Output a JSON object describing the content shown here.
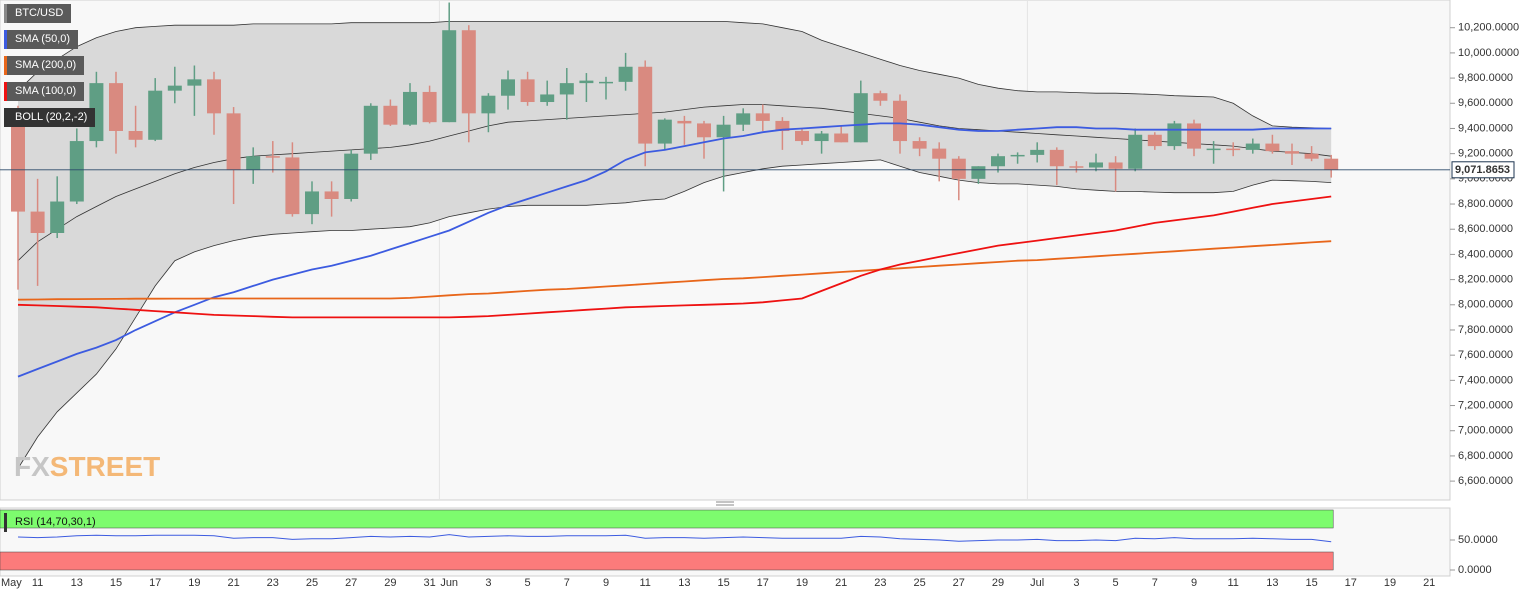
{
  "chart_data": [
    {
      "type": "candlestick",
      "symbol": "BTC/USD",
      "categories": [
        "May",
        "11",
        null,
        "13",
        null,
        "15",
        null,
        "17",
        null,
        "19",
        null,
        "21",
        null,
        "23",
        null,
        "25",
        null,
        "27",
        null,
        "29",
        null,
        "31",
        "Jun",
        null,
        "3",
        null,
        "5",
        null,
        "7",
        null,
        "9",
        null,
        "11",
        null,
        "13",
        null,
        "15",
        null,
        "17",
        null,
        "19",
        null,
        "21",
        null,
        "23",
        null,
        "25",
        null,
        "27",
        null,
        "29",
        null,
        "Jul",
        null,
        "3",
        null,
        "5",
        null,
        "7",
        null,
        "9",
        null,
        "11",
        null,
        "13",
        null,
        "15",
        null,
        "17",
        null,
        "19",
        null,
        "21"
      ],
      "open": [
        9430,
        8740,
        8570,
        8820,
        9300,
        9760,
        9380,
        9310,
        9700,
        9740,
        9790,
        9520,
        9070,
        9180,
        9170,
        8720,
        8900,
        8840,
        9200,
        9580,
        9430,
        9690,
        9450,
        10180,
        9520,
        9660,
        9790,
        9610,
        9670,
        9760,
        9770,
        9770,
        9890,
        9280,
        9460,
        9440,
        9330,
        9430,
        9520,
        9460,
        9380,
        9300,
        9360,
        9290,
        9680,
        9620,
        9300,
        9240,
        9160,
        9000,
        9100,
        9180,
        9190,
        9230,
        9100,
        9090,
        9130,
        9080,
        9350,
        9260,
        9440,
        9240,
        9240,
        9230,
        9280,
        9220,
        9200,
        9160,
        null,
        null,
        null,
        null,
        null
      ],
      "high": [
        9580,
        9000,
        9020,
        9400,
        9850,
        9850,
        9580,
        9800,
        9890,
        9900,
        9850,
        9570,
        9250,
        9300,
        9290,
        8980,
        8980,
        9230,
        9600,
        9630,
        9760,
        9740,
        10400,
        10220,
        9680,
        9860,
        9850,
        9780,
        9880,
        9840,
        9810,
        10000,
        9940,
        9480,
        9500,
        9460,
        9500,
        9560,
        9590,
        9490,
        9400,
        9380,
        9420,
        9780,
        9700,
        9670,
        9330,
        9290,
        9180,
        9100,
        9200,
        9210,
        9290,
        9250,
        9140,
        9200,
        9180,
        9400,
        9370,
        9460,
        9470,
        9300,
        9290,
        9320,
        9350,
        9280,
        9260,
        9190,
        null,
        null,
        null,
        null,
        null
      ],
      "low": [
        8120,
        8150,
        8530,
        8800,
        9250,
        9200,
        9250,
        9300,
        9600,
        9500,
        9350,
        8800,
        8960,
        9050,
        8700,
        8640,
        8700,
        8820,
        9150,
        9420,
        9420,
        9440,
        9450,
        9290,
        9370,
        9550,
        9580,
        9580,
        9470,
        9610,
        9630,
        9700,
        9100,
        9230,
        9270,
        9160,
        8900,
        9380,
        9380,
        9230,
        9270,
        9200,
        9290,
        9290,
        9580,
        9200,
        9180,
        8980,
        8830,
        8960,
        9050,
        9120,
        9130,
        8950,
        9050,
        9060,
        8900,
        9060,
        9230,
        9230,
        9180,
        9120,
        9180,
        9200,
        9200,
        9110,
        9140,
        9010,
        null,
        null,
        null,
        null,
        null
      ],
      "close": [
        8740,
        8570,
        8820,
        9300,
        9760,
        9380,
        9310,
        9700,
        9740,
        9790,
        9520,
        9070,
        9180,
        9170,
        8720,
        8900,
        8840,
        9200,
        9580,
        9430,
        9690,
        9450,
        10180,
        9520,
        9660,
        9790,
        9610,
        9670,
        9760,
        9780,
        9770,
        9890,
        9280,
        9470,
        9440,
        9330,
        9430,
        9520,
        9460,
        9380,
        9300,
        9360,
        9290,
        9680,
        9620,
        9300,
        9240,
        9160,
        9000,
        9100,
        9180,
        9190,
        9230,
        9100,
        9090,
        9130,
        9080,
        9350,
        9260,
        9440,
        9240,
        9240,
        9230,
        9280,
        9220,
        9200,
        9160,
        9071.8653,
        null,
        null,
        null,
        null,
        null
      ],
      "up_color": "#5f9e84",
      "down_color": "#d98a80",
      "series": [
        {
          "name": "SMA (50,0)",
          "color": "#3c5be0",
          "values": [
            7430,
            7490,
            7550,
            7610,
            7660,
            7720,
            7800,
            7870,
            7940,
            8000,
            8060,
            8100,
            8150,
            8200,
            8240,
            8280,
            8310,
            8350,
            8390,
            8440,
            8490,
            8540,
            8590,
            8660,
            8730,
            8790,
            8840,
            8890,
            8940,
            8990,
            9060,
            9150,
            9210,
            9230,
            9260,
            9290,
            9320,
            9340,
            9370,
            9390,
            9400,
            9410,
            9420,
            9430,
            9440,
            9440,
            9430,
            9410,
            9390,
            9380,
            9380,
            9390,
            9400,
            9410,
            9410,
            9400,
            9400,
            9390,
            9390,
            9390,
            9390,
            9390,
            9390,
            9390,
            9400,
            9400,
            9400,
            9400,
            null,
            null,
            null,
            null,
            null
          ]
        },
        {
          "name": "SMA (200,0)",
          "color": "#e8661a",
          "values": [
            8040,
            8042,
            8044,
            8045,
            8046,
            8047,
            8048,
            8048,
            8049,
            8049,
            8050,
            8050,
            8050,
            8050,
            8050,
            8050,
            8050,
            8050,
            8050,
            8050,
            8055,
            8065,
            8075,
            8085,
            8090,
            8100,
            8110,
            8120,
            8125,
            8135,
            8145,
            8155,
            8165,
            8175,
            8185,
            8195,
            8205,
            8210,
            8220,
            8230,
            8240,
            8250,
            8260,
            8270,
            8280,
            8290,
            8300,
            8310,
            8320,
            8330,
            8340,
            8350,
            8355,
            8365,
            8375,
            8385,
            8395,
            8405,
            8415,
            8425,
            8435,
            8445,
            8455,
            8465,
            8475,
            8485,
            8495,
            8505,
            null,
            null,
            null,
            null,
            null
          ]
        },
        {
          "name": "SMA (100,0)",
          "color": "#ee1111",
          "values": [
            8000,
            7995,
            7990,
            7985,
            7980,
            7970,
            7960,
            7950,
            7940,
            7930,
            7920,
            7915,
            7910,
            7905,
            7900,
            7900,
            7900,
            7900,
            7900,
            7900,
            7900,
            7900,
            7900,
            7905,
            7910,
            7920,
            7930,
            7940,
            7950,
            7960,
            7970,
            7980,
            7985,
            7990,
            7995,
            8000,
            8005,
            8010,
            8020,
            8035,
            8050,
            8110,
            8170,
            8230,
            8280,
            8320,
            8350,
            8380,
            8410,
            8440,
            8470,
            8490,
            8510,
            8530,
            8550,
            8570,
            8590,
            8620,
            8650,
            8670,
            8690,
            8710,
            8740,
            8770,
            8800,
            8820,
            8840,
            8860,
            null,
            null,
            null,
            null,
            null
          ]
        }
      ],
      "bollinger": {
        "name": "BOLL (20,2,-2)",
        "color": "#333333",
        "fill": "#d9d9d9",
        "upper": [
          9700,
          9850,
          9950,
          10050,
          10120,
          10170,
          10200,
          10210,
          10220,
          10220,
          10220,
          10220,
          10230,
          10230,
          10230,
          10230,
          10230,
          10240,
          10240,
          10240,
          10240,
          10240,
          10250,
          10250,
          10250,
          10250,
          10250,
          10250,
          10250,
          10250,
          10250,
          10250,
          10250,
          10250,
          10250,
          10250,
          10250,
          10240,
          10230,
          10200,
          10170,
          10100,
          10050,
          10000,
          9950,
          9900,
          9860,
          9830,
          9800,
          9750,
          9720,
          9700,
          9690,
          9690,
          9685,
          9680,
          9680,
          9675,
          9670,
          9660,
          9655,
          9650,
          9600,
          9500,
          9420,
          9410,
          9405,
          9400,
          null,
          null,
          null,
          null,
          null
        ],
        "middle": [
          8350,
          8500,
          8600,
          8700,
          8780,
          8860,
          8920,
          8980,
          9040,
          9090,
          9130,
          9160,
          9180,
          9190,
          9200,
          9210,
          9220,
          9230,
          9240,
          9250,
          9270,
          9300,
          9340,
          9380,
          9420,
          9450,
          9460,
          9470,
          9480,
          9490,
          9500,
          9510,
          9520,
          9530,
          9550,
          9570,
          9580,
          9590,
          9590,
          9580,
          9570,
          9560,
          9540,
          9520,
          9500,
          9480,
          9450,
          9420,
          9400,
          9390,
          9380,
          9370,
          9360,
          9350,
          9340,
          9330,
          9320,
          9310,
          9300,
          9290,
          9280,
          9270,
          9260,
          9240,
          9220,
          9210,
          9200,
          9180,
          null,
          null,
          null,
          null,
          null
        ],
        "lower": [
          6700,
          6950,
          7150,
          7300,
          7450,
          7650,
          7900,
          8150,
          8350,
          8420,
          8470,
          8510,
          8540,
          8560,
          8570,
          8580,
          8590,
          8590,
          8600,
          8610,
          8620,
          8650,
          8700,
          8730,
          8760,
          8780,
          8790,
          8790,
          8790,
          8790,
          8800,
          8810,
          8830,
          8840,
          8900,
          8970,
          9020,
          9050,
          9080,
          9100,
          9110,
          9120,
          9130,
          9140,
          9150,
          9100,
          9050,
          9020,
          8990,
          8970,
          8960,
          8960,
          8950,
          8940,
          8920,
          8910,
          8900,
          8900,
          8895,
          8890,
          8890,
          8890,
          8900,
          8950,
          8990,
          8985,
          8980,
          8970,
          null,
          null,
          null,
          null,
          null
        ]
      },
      "last_price": {
        "value": 9071.8653,
        "label": "9,071.8653"
      },
      "ylim": [
        6450,
        10420
      ],
      "yticks": [
        {
          "value": 6600,
          "label": "6,600.0000"
        },
        {
          "value": 6800,
          "label": "6,800.0000"
        },
        {
          "value": 7000,
          "label": "7,000.0000"
        },
        {
          "value": 7200,
          "label": "7,200.0000"
        },
        {
          "value": 7400,
          "label": "7,400.0000"
        },
        {
          "value": 7600,
          "label": "7,600.0000"
        },
        {
          "value": 7800,
          "label": "7,800.0000"
        },
        {
          "value": 8000,
          "label": "8,000.0000"
        },
        {
          "value": 8200,
          "label": "8,200.0000"
        },
        {
          "value": 8400,
          "label": "8,400.0000"
        },
        {
          "value": 8600,
          "label": "8,600.0000"
        },
        {
          "value": 8800,
          "label": "8,800.0000"
        },
        {
          "value": 9000,
          "label": "9,000.0000"
        },
        {
          "value": 9200,
          "label": "9,200.0000"
        },
        {
          "value": 9400,
          "label": "9,400.0000"
        },
        {
          "value": 9600,
          "label": "9,600.0000"
        },
        {
          "value": 9800,
          "label": "9,800.0000"
        },
        {
          "value": 10000,
          "label": "10,000.0000"
        },
        {
          "value": 10200,
          "label": "10,200.0000"
        }
      ],
      "watermark": [
        "FX",
        "STREET"
      ]
    },
    {
      "type": "line",
      "name": "RSI (14,70,30,1)",
      "color": "#3c5be0",
      "values": [
        55,
        54,
        55,
        57,
        58,
        57,
        57,
        58,
        58,
        58,
        57,
        53,
        54,
        54,
        51,
        52,
        52,
        54,
        56,
        55,
        56,
        55,
        59,
        55,
        56,
        57,
        56,
        56,
        57,
        57,
        57,
        58,
        53,
        54,
        54,
        53,
        54,
        55,
        54,
        53,
        53,
        53,
        53,
        56,
        55,
        52,
        51,
        50,
        48,
        49,
        50,
        50,
        51,
        49,
        49,
        50,
        49,
        53,
        52,
        54,
        52,
        52,
        52,
        53,
        52,
        51,
        51,
        47,
        null,
        null,
        null,
        null,
        null
      ],
      "zones": [
        {
          "from": 70,
          "to": 100,
          "color": "#7dfc6e"
        },
        {
          "from": 0,
          "to": 30,
          "color": "#fc7b7b"
        }
      ],
      "ylim": [
        0,
        100
      ],
      "yticks": [
        {
          "value": 0,
          "label": "0.0000"
        },
        {
          "value": 50,
          "label": "50.0000"
        }
      ]
    }
  ]
}
